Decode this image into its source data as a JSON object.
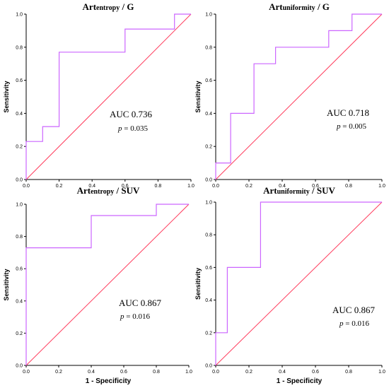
{
  "chart_data": [
    {
      "type": "line",
      "title_main": "Art",
      "title_sub": "entropy",
      "title_suffix": " / G",
      "xlabel": "",
      "ylabel": "Sensitivity",
      "xlim": [
        0,
        1
      ],
      "ylim": [
        0,
        1
      ],
      "xticks": [
        "0.0",
        "0.2",
        "0.4",
        "0.6",
        "0.8",
        "1.0"
      ],
      "yticks": [
        "0.0",
        "0.2",
        "0.4",
        "0.6",
        "0.8",
        "1.0"
      ],
      "roc": {
        "x": [
          0,
          0,
          0.1,
          0.1,
          0.2,
          0.2,
          0.6,
          0.6,
          0.9,
          0.9,
          1.0,
          1.0
        ],
        "y": [
          0,
          0.23,
          0.23,
          0.32,
          0.32,
          0.77,
          0.77,
          0.91,
          0.91,
          1.0,
          1.0,
          1.0
        ]
      },
      "reference": {
        "x": [
          0,
          1
        ],
        "y": [
          0,
          1
        ]
      },
      "auc_text": "AUC 0.736",
      "p_label": "p",
      "p_value": " = 0.035",
      "colors": {
        "roc": "#cc66ff",
        "reference": "#ff3b5c"
      }
    },
    {
      "type": "line",
      "title_main": "Art",
      "title_sub": "uniformity",
      "title_suffix": " / G",
      "xlabel": "",
      "ylabel": "Sensitivity",
      "xlim": [
        0,
        1
      ],
      "ylim": [
        0,
        1
      ],
      "xticks": [
        "0.0",
        "0.2",
        "0.4",
        "0.6",
        "0.8",
        "1.0"
      ],
      "yticks": [
        "0.0",
        "0.2",
        "0.4",
        "0.6",
        "0.8",
        "1.0"
      ],
      "roc": {
        "x": [
          0,
          0,
          0.09,
          0.09,
          0.23,
          0.23,
          0.36,
          0.36,
          0.68,
          0.68,
          0.82,
          0.82,
          1.0
        ],
        "y": [
          0,
          0.1,
          0.1,
          0.4,
          0.4,
          0.7,
          0.7,
          0.8,
          0.8,
          0.9,
          0.9,
          1.0,
          1.0
        ]
      },
      "reference": {
        "x": [
          0,
          1
        ],
        "y": [
          0,
          1
        ]
      },
      "auc_text": "AUC 0.718",
      "p_label": "p",
      "p_value": " = 0.005",
      "colors": {
        "roc": "#cc66ff",
        "reference": "#ff3b5c"
      }
    },
    {
      "type": "line",
      "title_main": "Art",
      "title_sub": "entropy",
      "title_suffix": " / SUV",
      "xlabel": "1 - Specificity",
      "ylabel": "Sensitivity",
      "xlim": [
        0,
        1
      ],
      "ylim": [
        0,
        1
      ],
      "xticks": [
        "0.0",
        "0.2",
        "0.4",
        "0.6",
        "0.8",
        "1.0"
      ],
      "yticks": [
        "0.0",
        "0.2",
        "0.4",
        "0.6",
        "0.8",
        "1.0"
      ],
      "roc": {
        "x": [
          0,
          0,
          0.4,
          0.4,
          0.8,
          0.8,
          1.0
        ],
        "y": [
          0,
          0.73,
          0.73,
          0.93,
          0.93,
          1.0,
          1.0
        ]
      },
      "reference": {
        "x": [
          0,
          1
        ],
        "y": [
          0,
          1
        ]
      },
      "auc_text": "AUC 0.867",
      "p_label": "p",
      "p_value": " = 0.016",
      "colors": {
        "roc": "#cc66ff",
        "reference": "#ff3b5c"
      }
    },
    {
      "type": "line",
      "title_main": "Art",
      "title_sub": "uniformity",
      "title_suffix": " / SUV",
      "xlabel": "1 - Specificity",
      "ylabel": "Sensitivity",
      "xlim": [
        0,
        1
      ],
      "ylim": [
        0,
        1
      ],
      "xticks": [
        "0.0",
        "0.2",
        "0.4",
        "0.6",
        "0.8",
        "1.0"
      ],
      "yticks": [
        "0.0",
        "0.2",
        "0.4",
        "0.6",
        "0.8",
        "1.0"
      ],
      "roc": {
        "x": [
          0,
          0,
          0.07,
          0.07,
          0.27,
          0.27,
          1.0
        ],
        "y": [
          0,
          0.2,
          0.2,
          0.6,
          0.6,
          1.0,
          1.0
        ]
      },
      "reference": {
        "x": [
          0,
          1
        ],
        "y": [
          0,
          1
        ]
      },
      "auc_text": "AUC 0.867",
      "p_label": "p",
      "p_value": " = 0.016",
      "colors": {
        "roc": "#cc66ff",
        "reference": "#ff3b5c"
      }
    }
  ]
}
